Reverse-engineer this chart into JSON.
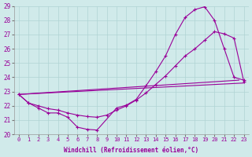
{
  "xlabel": "Windchill (Refroidissement éolien,°C)",
  "xlim": [
    -0.5,
    23.5
  ],
  "ylim": [
    20,
    29
  ],
  "xticks": [
    0,
    1,
    2,
    3,
    4,
    5,
    6,
    7,
    8,
    9,
    10,
    11,
    12,
    13,
    14,
    15,
    16,
    17,
    18,
    19,
    20,
    21,
    22,
    23
  ],
  "yticks": [
    20,
    21,
    22,
    23,
    24,
    25,
    26,
    27,
    28,
    29
  ],
  "bg_color": "#d0eaea",
  "grid_color": "#b0d4d4",
  "line_color": "#990099",
  "lines": [
    {
      "x": [
        0,
        1,
        2,
        3,
        4,
        5,
        6,
        7,
        8,
        10,
        11,
        12,
        13,
        14,
        15,
        16,
        17,
        18,
        19,
        20,
        21,
        22,
        23
      ],
      "y": [
        22.8,
        22.2,
        21.85,
        21.5,
        21.5,
        21.2,
        20.5,
        20.35,
        20.3,
        21.85,
        22.05,
        22.45,
        23.4,
        24.4,
        25.5,
        27.0,
        28.2,
        28.75,
        28.95,
        28.0,
        26.0,
        24.0,
        23.8
      ]
    },
    {
      "x": [
        0,
        1,
        2,
        3,
        4,
        5,
        6,
        7,
        8,
        9,
        10,
        11,
        12,
        13,
        14,
        15,
        16,
        17,
        18,
        19,
        20,
        21,
        22,
        23
      ],
      "y": [
        22.8,
        22.2,
        22.0,
        21.8,
        21.7,
        21.5,
        21.35,
        21.25,
        21.2,
        21.35,
        21.7,
        22.0,
        22.4,
        22.9,
        23.5,
        24.1,
        24.8,
        25.5,
        26.0,
        26.6,
        27.2,
        27.05,
        26.75,
        23.7
      ]
    },
    {
      "x": [
        0,
        23
      ],
      "y": [
        22.8,
        23.6
      ]
    },
    {
      "x": [
        0,
        23
      ],
      "y": [
        22.8,
        23.6
      ]
    }
  ]
}
